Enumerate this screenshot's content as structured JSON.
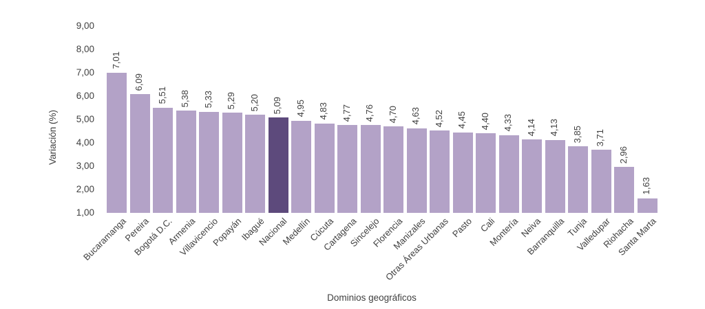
{
  "chart_data": {
    "type": "bar",
    "title": "",
    "xlabel": "Dominios geográficos",
    "ylabel": "Variación (%)",
    "ymin": 1.0,
    "ymax": 9.0,
    "ytick_step": 1.0,
    "ytick_labels": [
      "9,00",
      "8,00",
      "7,00",
      "6,00",
      "5,00",
      "4,00",
      "3,00",
      "2,00",
      "1,00"
    ],
    "grid": false,
    "legend": false,
    "decimal_separator": ",",
    "bar_color": "#b3a2c7",
    "highlight_color": "#5d4a7c",
    "highlight_category": "Nacional",
    "text_color": "#404040",
    "categories": [
      "Bucaramanga",
      "Pereira",
      "Bogotá D.C.",
      "Armenia",
      "Villavicencio",
      "Popayán",
      "Ibagué",
      "Nacional",
      "Medellín",
      "Cúcuta",
      "Cartagena",
      "Sincelejo",
      "Florencia",
      "Manizales",
      "Otras Áreas Urbanas",
      "Pasto",
      "Cali",
      "Montería",
      "Neiva",
      "Barranquilla",
      "Tunja",
      "Valledupar",
      "Riohacha",
      "Santa Marta"
    ],
    "values": [
      7.01,
      6.09,
      5.51,
      5.38,
      5.33,
      5.29,
      5.2,
      5.09,
      4.95,
      4.83,
      4.77,
      4.76,
      4.7,
      4.63,
      4.52,
      4.45,
      4.4,
      4.33,
      4.14,
      4.13,
      3.85,
      3.71,
      2.96,
      1.63
    ],
    "value_labels": [
      "7,01",
      "6,09",
      "5,51",
      "5,38",
      "5,33",
      "5,29",
      "5,20",
      "5,09",
      "4,95",
      "4,83",
      "4,77",
      "4,76",
      "4,70",
      "4,63",
      "4,52",
      "4,45",
      "4,40",
      "4,33",
      "4,14",
      "4,13",
      "3,85",
      "3,71",
      "2,96",
      "1,63"
    ]
  }
}
